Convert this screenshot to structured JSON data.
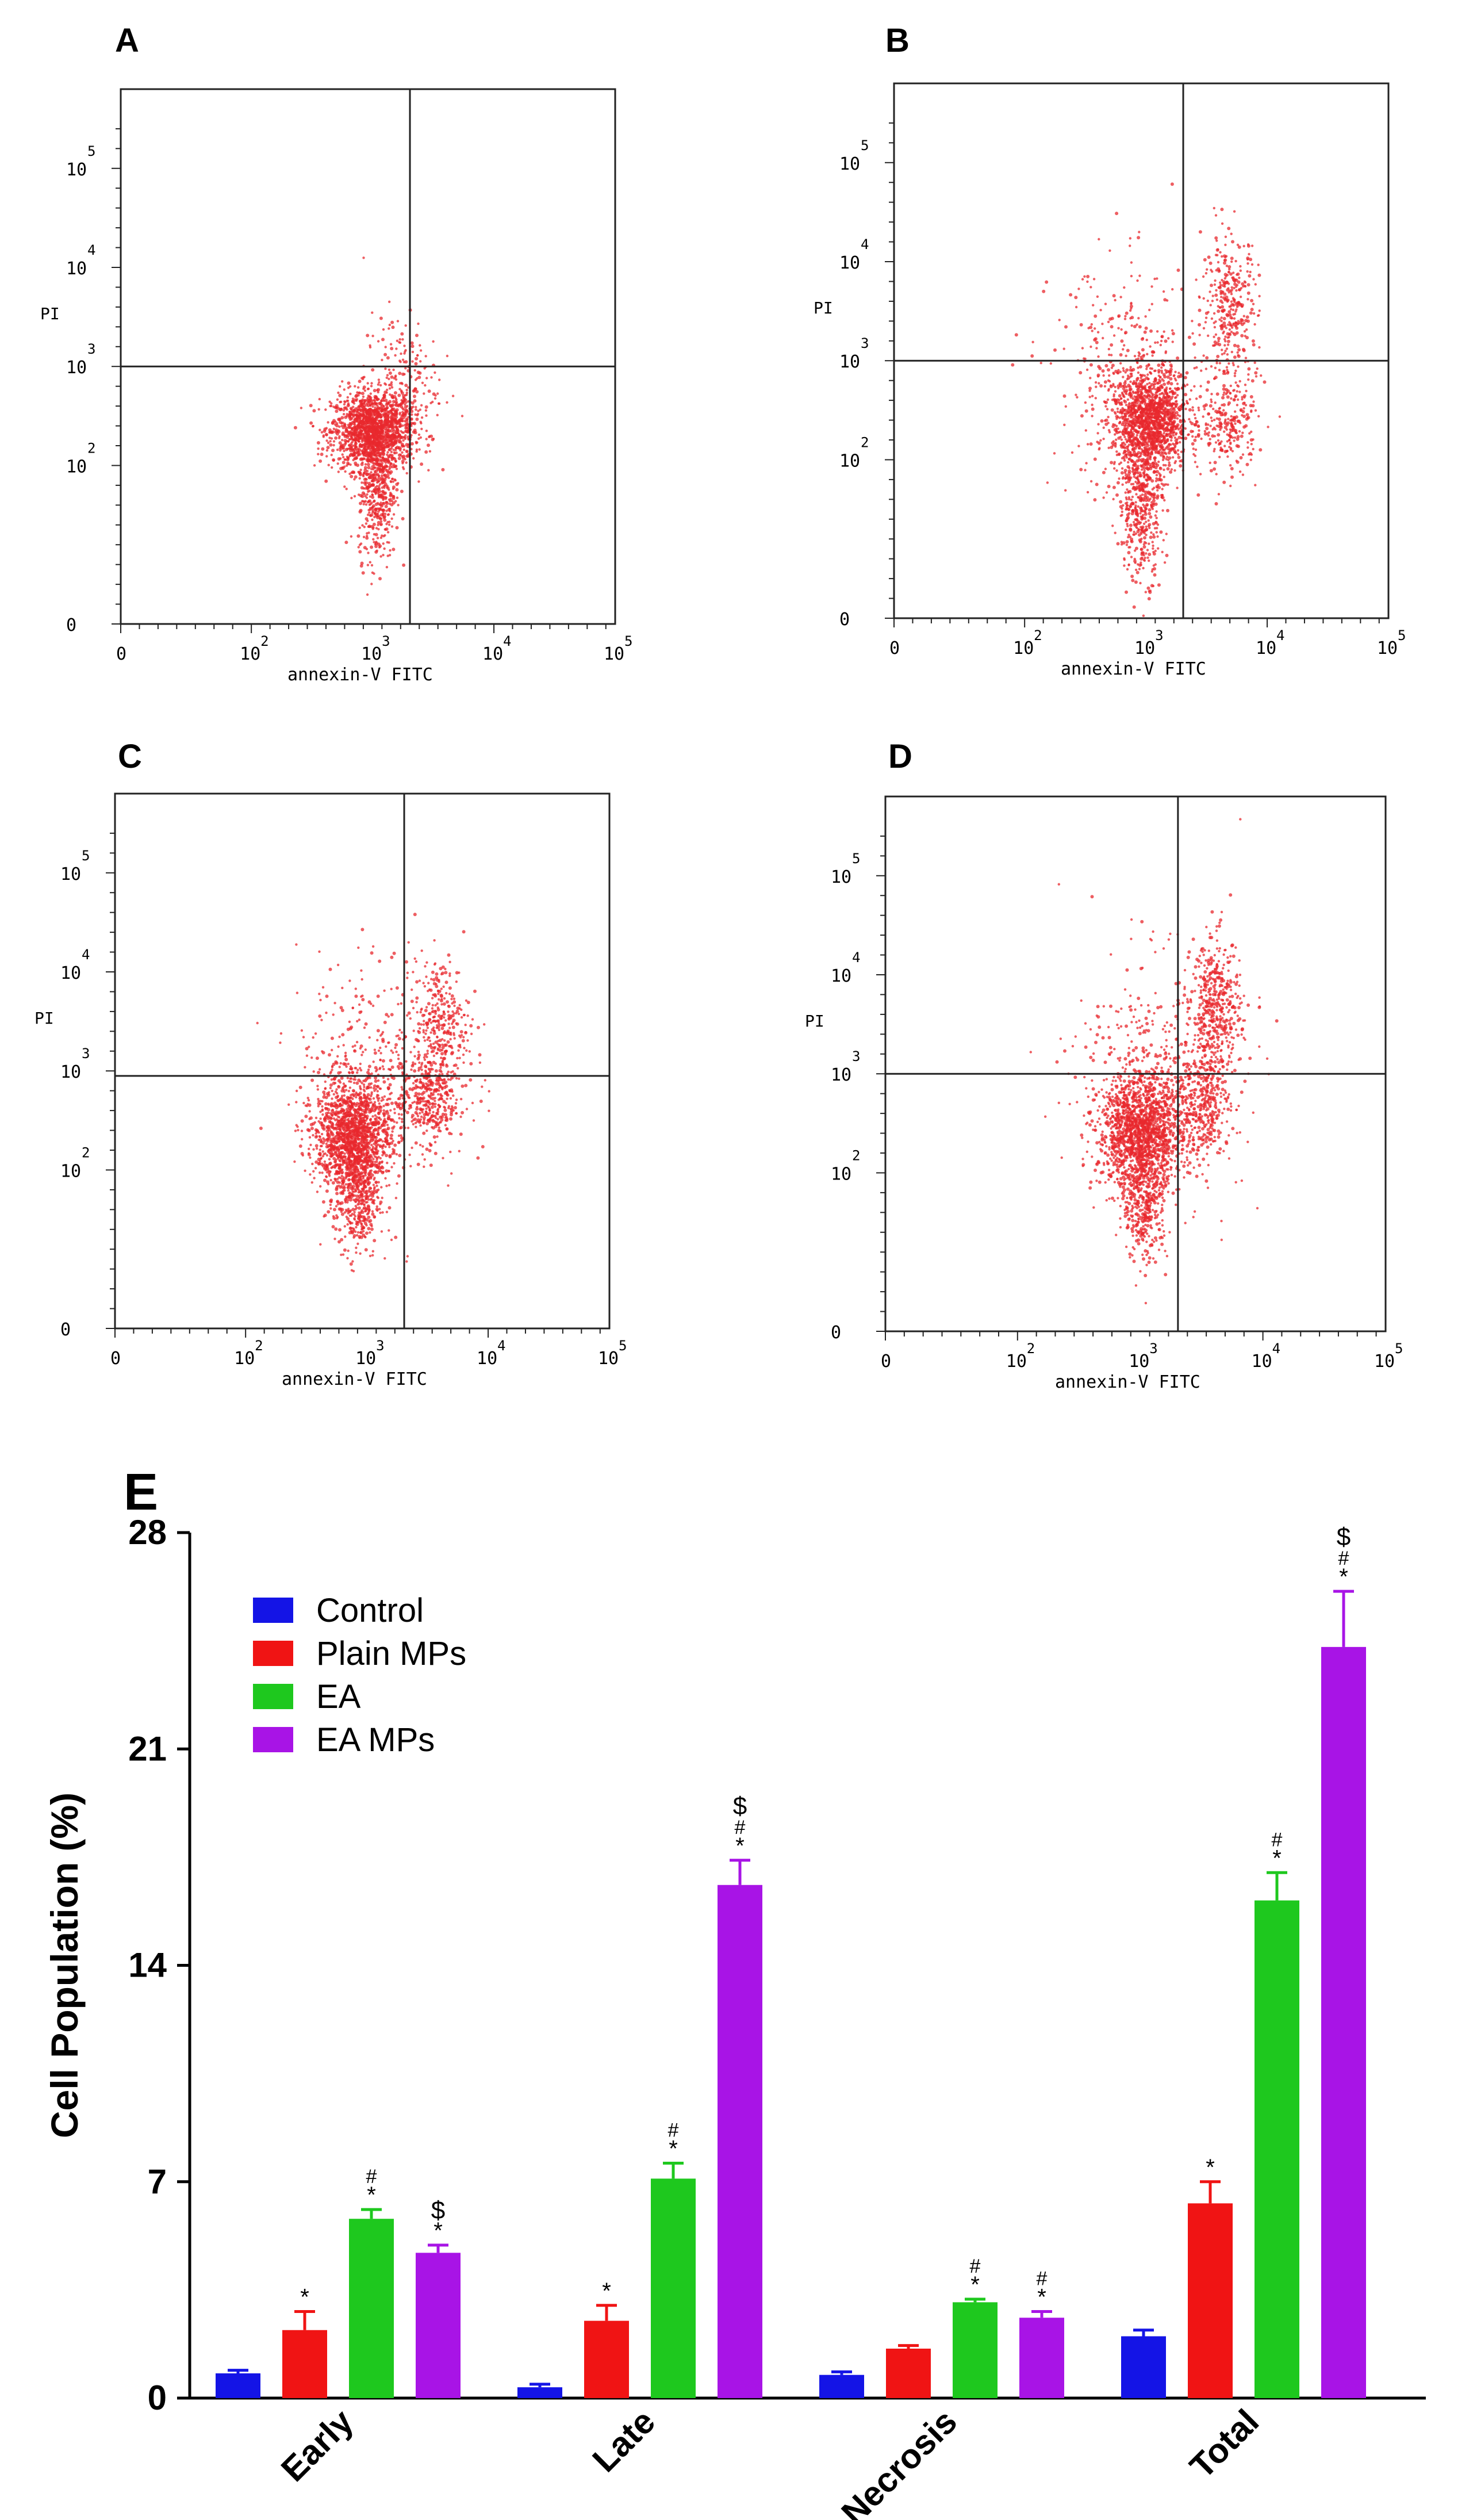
{
  "chart_data": [
    {
      "type": "scatter",
      "panel": "A",
      "xlabel": "annexin-V FITC",
      "ylabel": "PI",
      "x_ticks": [
        "0",
        "10^2",
        "10^3",
        "10^4",
        "10^5"
      ],
      "y_ticks": [
        "0",
        "10^2",
        "10^3",
        "10^4",
        "10^5"
      ],
      "xlim": [
        0,
        5.3
      ],
      "ylim": [
        0,
        5.4
      ],
      "gate_x": 3.1,
      "gate_y": 2.6,
      "clusters": [
        {
          "cx": 2.7,
          "cy": 1.95,
          "sx": 0.22,
          "sy": 0.2,
          "n": 1600
        },
        {
          "cx": 2.75,
          "cy": 1.35,
          "sx": 0.1,
          "sy": 0.35,
          "n": 450
        },
        {
          "cx": 3.0,
          "cy": 2.45,
          "sx": 0.2,
          "sy": 0.35,
          "n": 180
        }
      ],
      "color": "#e8282e"
    },
    {
      "type": "scatter",
      "panel": "B",
      "xlabel": "annexin-V FITC",
      "ylabel": "PI",
      "x_ticks": [
        "0",
        "10^2",
        "10^3",
        "10^4",
        "10^5"
      ],
      "y_ticks": [
        "0",
        "10^2",
        "10^3",
        "10^4",
        "10^5"
      ],
      "xlim": [
        0,
        5.3
      ],
      "ylim": [
        0,
        5.4
      ],
      "gate_x": 3.1,
      "gate_y": 2.6,
      "clusters": [
        {
          "cx": 2.75,
          "cy": 2.0,
          "sx": 0.2,
          "sy": 0.25,
          "n": 1400
        },
        {
          "cx": 2.65,
          "cy": 1.2,
          "sx": 0.12,
          "sy": 0.4,
          "n": 500
        },
        {
          "cx": 3.6,
          "cy": 3.15,
          "sx": 0.15,
          "sy": 0.35,
          "n": 350
        },
        {
          "cx": 3.6,
          "cy": 1.95,
          "sx": 0.15,
          "sy": 0.25,
          "n": 250
        },
        {
          "cx": 2.5,
          "cy": 2.4,
          "sx": 0.4,
          "sy": 0.6,
          "n": 350
        }
      ],
      "color": "#e8282e"
    },
    {
      "type": "scatter",
      "panel": "C",
      "xlabel": "annexin-V FITC",
      "ylabel": "PI",
      "x_ticks": [
        "0",
        "10^2",
        "10^3",
        "10^4",
        "10^5"
      ],
      "y_ticks": [
        "0",
        "10^2",
        "10^3",
        "10^4",
        "10^5"
      ],
      "xlim": [
        0,
        5.3
      ],
      "ylim": [
        0,
        5.4
      ],
      "gate_x": 3.1,
      "gate_y": 2.55,
      "clusters": [
        {
          "cx": 2.55,
          "cy": 1.95,
          "sx": 0.2,
          "sy": 0.28,
          "n": 1500
        },
        {
          "cx": 2.6,
          "cy": 1.3,
          "sx": 0.12,
          "sy": 0.3,
          "n": 400
        },
        {
          "cx": 3.5,
          "cy": 3.05,
          "sx": 0.15,
          "sy": 0.35,
          "n": 320
        },
        {
          "cx": 3.35,
          "cy": 2.3,
          "sx": 0.15,
          "sy": 0.2,
          "n": 300
        },
        {
          "cx": 2.85,
          "cy": 2.55,
          "sx": 0.45,
          "sy": 0.6,
          "n": 450
        }
      ],
      "color": "#e8282e"
    },
    {
      "type": "scatter",
      "panel": "D",
      "xlabel": "annexin-V FITC",
      "ylabel": "PI",
      "x_ticks": [
        "0",
        "10^2",
        "10^3",
        "10^4",
        "10^5"
      ],
      "y_ticks": [
        "0",
        "10^2",
        "10^3",
        "10^4",
        "10^5"
      ],
      "xlim": [
        0,
        5.3
      ],
      "ylim": [
        0,
        5.4
      ],
      "gate_x": 3.1,
      "gate_y": 2.6,
      "clusters": [
        {
          "cx": 2.7,
          "cy": 2.0,
          "sx": 0.22,
          "sy": 0.28,
          "n": 1500
        },
        {
          "cx": 2.75,
          "cy": 1.3,
          "sx": 0.12,
          "sy": 0.3,
          "n": 380
        },
        {
          "cx": 3.5,
          "cy": 3.25,
          "sx": 0.13,
          "sy": 0.35,
          "n": 450
        },
        {
          "cx": 3.35,
          "cy": 2.3,
          "sx": 0.15,
          "sy": 0.25,
          "n": 350
        },
        {
          "cx": 2.9,
          "cy": 2.6,
          "sx": 0.45,
          "sy": 0.6,
          "n": 450
        }
      ],
      "color": "#e8282e"
    },
    {
      "type": "bar",
      "panel": "E",
      "ylabel": "Cell Population (%)",
      "ylim": [
        0,
        28
      ],
      "yticks": [
        "0",
        "7",
        "14",
        "21",
        "28"
      ],
      "categories": [
        "Early",
        "Late",
        "Necrosis",
        "Total"
      ],
      "series": [
        {
          "name": "Control",
          "color": "#1414e6",
          "values": [
            0.8,
            0.35,
            0.75,
            2.0
          ],
          "errors": [
            0.1,
            0.1,
            0.1,
            0.2
          ],
          "sig": [
            "",
            "",
            "",
            ""
          ]
        },
        {
          "name": "Plain MPs",
          "color": "#f01414",
          "values": [
            2.2,
            2.5,
            1.6,
            6.3
          ],
          "errors": [
            0.6,
            0.5,
            0.1,
            0.7
          ],
          "sig": [
            "*",
            "*",
            "",
            "*"
          ]
        },
        {
          "name": "EA",
          "color": "#1ec81e",
          "values": [
            5.8,
            7.1,
            3.1,
            16.1
          ],
          "errors": [
            0.3,
            0.5,
            0.1,
            0.9
          ],
          "sig": [
            "*#",
            "*#",
            "*#",
            "*#"
          ]
        },
        {
          "name": "EA MPs",
          "color": "#a814e6",
          "values": [
            4.7,
            16.6,
            2.6,
            24.3
          ],
          "errors": [
            0.25,
            0.8,
            0.2,
            1.8
          ],
          "sig": [
            "*$",
            "*#$",
            "*#",
            "*#$"
          ]
        }
      ],
      "legend_position": "top-left"
    }
  ],
  "panel_labels": [
    "A",
    "B",
    "C",
    "D",
    "E"
  ],
  "flow_text": {
    "xlabel": "annexin-V FITC",
    "ylabel": "PI",
    "x_ticks": [
      "0",
      "10",
      "10",
      "10",
      "10"
    ],
    "x_exps": [
      "",
      "2",
      "3",
      "4",
      "5"
    ],
    "y_ticks": [
      "0",
      "10",
      "10",
      "10",
      "10"
    ],
    "y_exps": [
      "",
      "2",
      "3",
      "4",
      "5"
    ]
  }
}
